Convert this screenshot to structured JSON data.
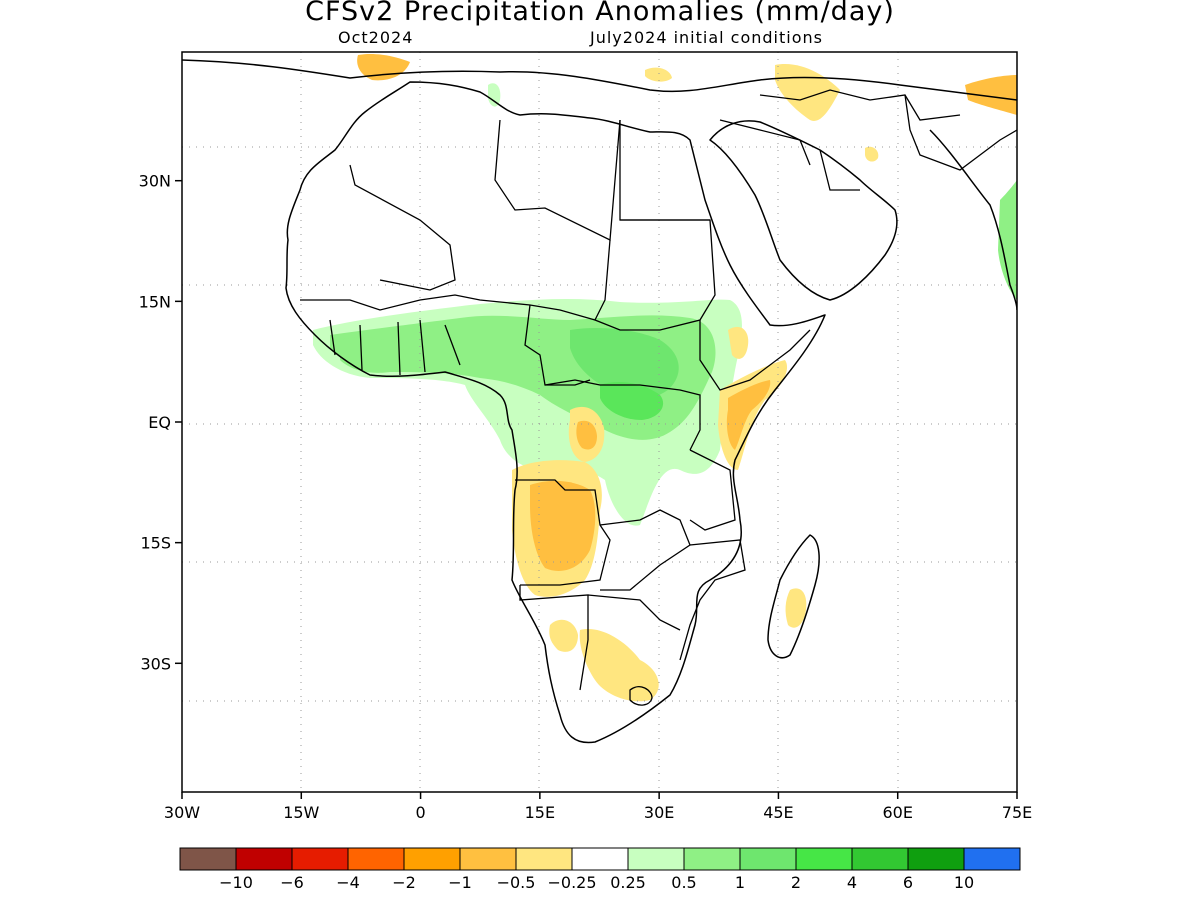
{
  "title": "CFSv2 Precipitation Anomalies (mm/day)",
  "subtitle_left": "Oct2024",
  "subtitle_right": "July2024 initial conditions",
  "map": {
    "lon_range": [
      -30,
      75
    ],
    "lat_range": [
      -46,
      46
    ],
    "x_ticks": [
      {
        "value": -30,
        "label": "30W"
      },
      {
        "value": -15,
        "label": "15W"
      },
      {
        "value": 0,
        "label": "0"
      },
      {
        "value": 15,
        "label": "15E"
      },
      {
        "value": 30,
        "label": "30E"
      },
      {
        "value": 45,
        "label": "45E"
      },
      {
        "value": 60,
        "label": "60E"
      },
      {
        "value": 75,
        "label": "75E"
      }
    ],
    "y_ticks": [
      {
        "value": 30,
        "label": "30N"
      },
      {
        "value": 15,
        "label": "15N"
      },
      {
        "value": 0,
        "label": "EQ"
      },
      {
        "value": -15,
        "label": "15S"
      },
      {
        "value": -30,
        "label": "30S"
      }
    ],
    "grid": "dotted",
    "colors": {
      "dry_light": "#ffe680",
      "dry_mid": "#ffbf40",
      "wet_light": "#c8ffc0",
      "wet_mid": "#8ff085",
      "wet_strong": "#5ae65a",
      "land_outline": "#000000"
    }
  },
  "colorbar": {
    "colors": [
      "#7f5548",
      "#c00000",
      "#e61c00",
      "#ff6400",
      "#ffa000",
      "#ffc040",
      "#ffe680",
      "#ffffff",
      "#c8ffc0",
      "#8ff085",
      "#6ee66e",
      "#46e646",
      "#32c832",
      "#0f9f0f",
      "#2070f0"
    ],
    "labels": [
      "−10",
      "−6",
      "−4",
      "−2",
      "−1",
      "−0.5",
      "−0.25",
      "0.25",
      "0.5",
      "1",
      "2",
      "4",
      "6",
      "10"
    ]
  }
}
